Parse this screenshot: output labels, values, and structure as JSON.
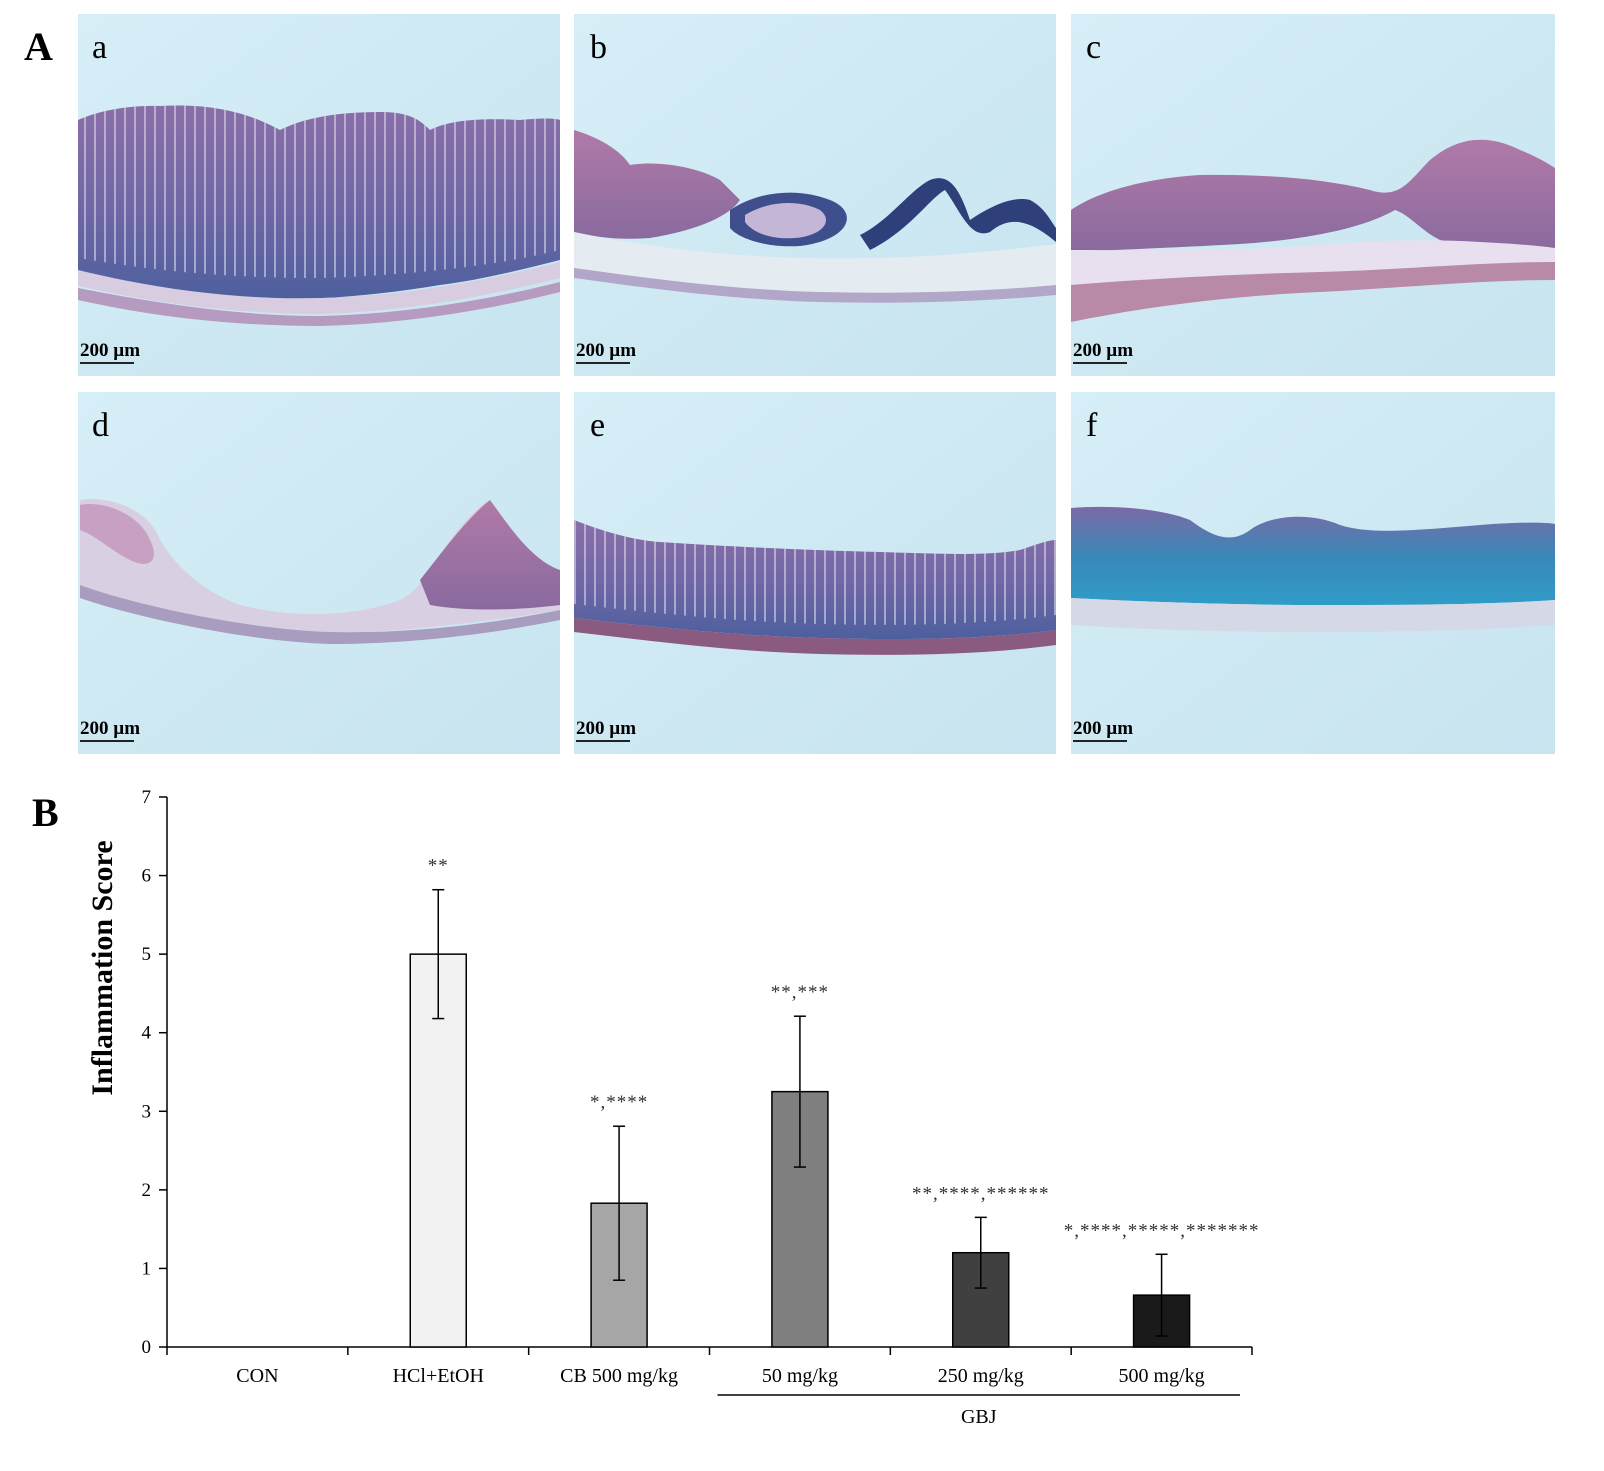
{
  "panel_a": {
    "letter": "A",
    "micrographs": [
      {
        "label": "a",
        "scale_bar": "200 µm"
      },
      {
        "label": "b",
        "scale_bar": "200 µm"
      },
      {
        "label": "c",
        "scale_bar": "200 µm"
      },
      {
        "label": "d",
        "scale_bar": "200 µm"
      },
      {
        "label": "e",
        "scale_bar": "200 µm"
      },
      {
        "label": "f",
        "scale_bar": "200 µm"
      }
    ]
  },
  "panel_b": {
    "letter": "B"
  },
  "colors": {
    "background": "#ffffff",
    "micrograph_bg": "#cfe9f3",
    "tissue_purple": "#7a6aa8",
    "tissue_pink": "#c9a6c8",
    "bar_edge": "#000000"
  },
  "chart_data": {
    "type": "bar",
    "ylabel": "Inflammation Score",
    "xlabel": "",
    "ylim": [
      0,
      7
    ],
    "yticks": [
      0,
      1,
      2,
      3,
      4,
      5,
      6,
      7
    ],
    "categories": [
      "CON",
      "HCl+EtOH",
      "CB 500 mg/kg",
      "50 mg/kg",
      "250 mg/kg",
      "500 mg/kg"
    ],
    "values": [
      0,
      5.0,
      1.83,
      3.25,
      1.2,
      0.66
    ],
    "errors": [
      0,
      0.82,
      0.98,
      0.96,
      0.45,
      0.52
    ],
    "bar_colors": [
      "#ffffff",
      "#f2f2f2",
      "#a6a6a6",
      "#7f7f7f",
      "#404040",
      "#1a1a1a"
    ],
    "significance": [
      "",
      "**",
      "*,****",
      "**,***",
      "**,****,******",
      "*,****,*****,*******"
    ],
    "group_label": "GBJ",
    "group_members": [
      "50 mg/kg",
      "250 mg/kg",
      "500 mg/kg"
    ],
    "grid": false,
    "legend": "none"
  }
}
